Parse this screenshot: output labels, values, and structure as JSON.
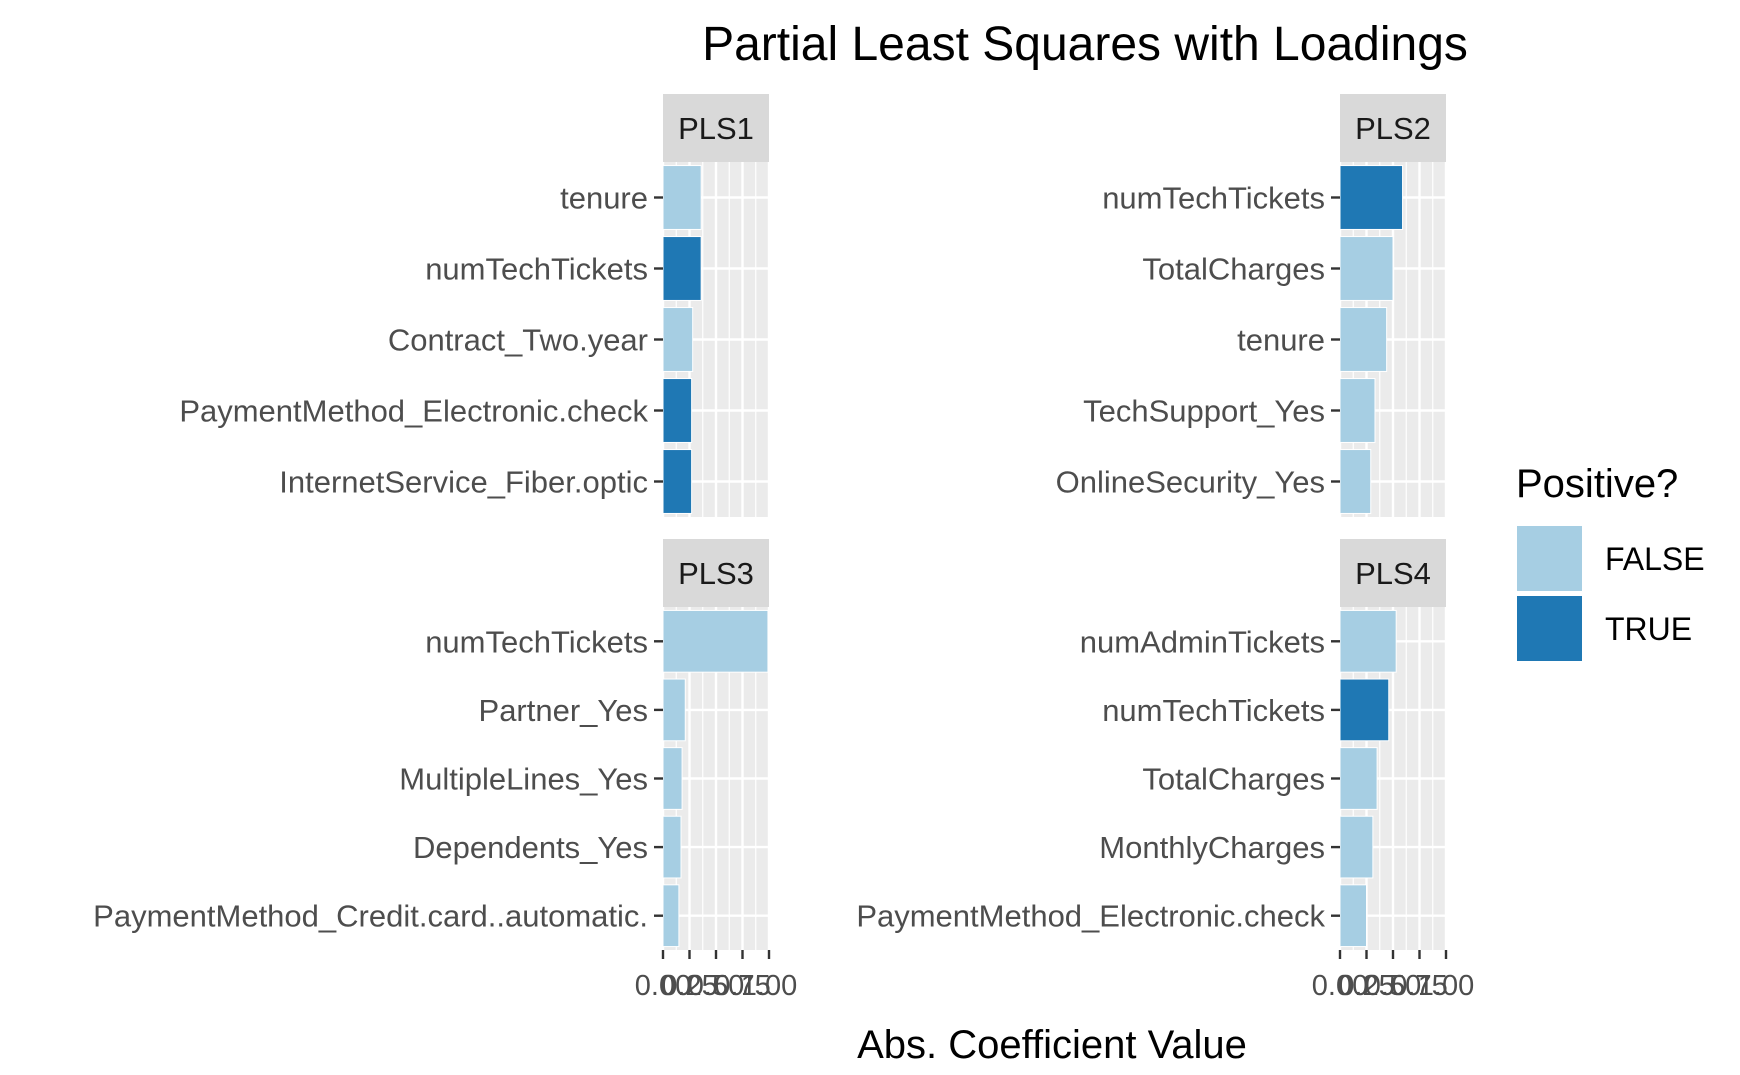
{
  "chart_data": {
    "type": "bar",
    "orientation": "horizontal",
    "title": "Partial Least Squares with Loadings",
    "xlabel": "Abs. Coefficient Value",
    "ylabel": "",
    "xlim": [
      0,
      1
    ],
    "x_ticks": [
      "0.00",
      "0.25",
      "0.50",
      "0.75",
      "1.00"
    ],
    "grid": true,
    "colors": {
      "FALSE": "#a6cee3",
      "TRUE": "#1f78b4",
      "panel_bg": "#ebebeb",
      "strip_bg": "#d9d9d9"
    },
    "legend": {
      "title": "Positive?",
      "position": "right",
      "entries": [
        {
          "label": "FALSE",
          "color": "#a6cee3"
        },
        {
          "label": "TRUE",
          "color": "#1f78b4"
        }
      ]
    },
    "facets": [
      {
        "name": "PLS1",
        "categories": [
          "tenure",
          "numTechTickets",
          "Contract_Two.year",
          "PaymentMethod_Electronic.check",
          "InternetService_Fiber.optic"
        ],
        "values": [
          0.36,
          0.36,
          0.28,
          0.27,
          0.27
        ],
        "positive": [
          false,
          true,
          false,
          true,
          true
        ]
      },
      {
        "name": "PLS2",
        "categories": [
          "numTechTickets",
          "TotalCharges",
          "tenure",
          "TechSupport_Yes",
          "OnlineSecurity_Yes"
        ],
        "values": [
          0.59,
          0.5,
          0.44,
          0.33,
          0.29
        ],
        "positive": [
          true,
          false,
          false,
          false,
          false
        ]
      },
      {
        "name": "PLS3",
        "categories": [
          "numTechTickets",
          "Partner_Yes",
          "MultipleLines_Yes",
          "Dependents_Yes",
          "PaymentMethod_Credit.card..automatic."
        ],
        "values": [
          0.99,
          0.21,
          0.18,
          0.17,
          0.15
        ],
        "positive": [
          false,
          false,
          false,
          false,
          false
        ]
      },
      {
        "name": "PLS4",
        "categories": [
          "numAdminTickets",
          "numTechTickets",
          "TotalCharges",
          "MonthlyCharges",
          "PaymentMethod_Electronic.check"
        ],
        "values": [
          0.53,
          0.46,
          0.35,
          0.31,
          0.25
        ],
        "positive": [
          false,
          true,
          false,
          false,
          false
        ]
      }
    ]
  }
}
